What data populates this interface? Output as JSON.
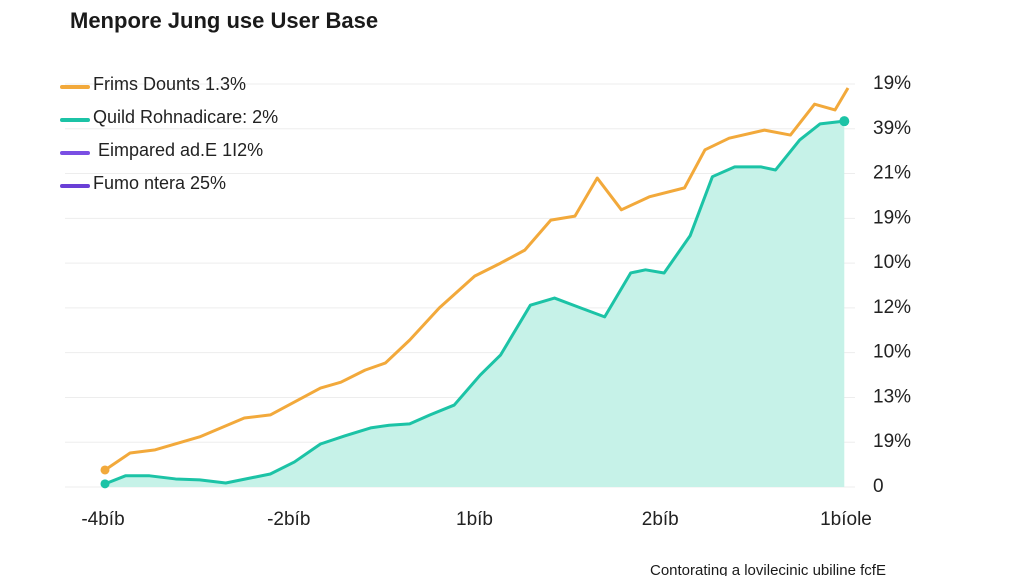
{
  "chart_data": {
    "type": "line",
    "title": "Menpore Jung use User Base",
    "footnote": "Contorating a lovilecinic ubiline fcfE",
    "xlim": [
      0,
      40
    ],
    "xticks": [
      {
        "value": 0,
        "label": "-4bíb"
      },
      {
        "value": 10,
        "label": "-2bíb"
      },
      {
        "value": 20,
        "label": "1bíb"
      },
      {
        "value": 30,
        "label": "2bíb"
      },
      {
        "value": 40,
        "label": "1bíole"
      }
    ],
    "ylim": [
      0,
      9
    ],
    "yticks": [
      0,
      {
        "value": 1,
        "label": "19%"
      },
      {
        "value": 2,
        "label": "13%"
      },
      {
        "value": 3,
        "label": "10%"
      },
      {
        "value": 4,
        "label": "12%"
      },
      {
        "value": 5,
        "label": "10%"
      },
      {
        "value": 6,
        "label": "19%"
      },
      {
        "value": 7,
        "label": "21%"
      },
      {
        "value": 8,
        "label": "39%"
      },
      {
        "value": 9,
        "label": "19%"
      }
    ],
    "grid": true,
    "legend_position": "upper left",
    "series": [
      {
        "name": "Frims Dounts 1.3%",
        "color": "#f2a93b",
        "x": [
          0,
          1.35,
          2.7,
          5.1,
          7.5,
          8.9,
          11.6,
          12.7,
          14,
          15.1,
          16.4,
          18,
          19.9,
          21.3,
          22.6,
          24,
          25.3,
          26.5,
          27.8,
          29.3,
          31.2,
          32.3,
          33.6,
          35.5,
          36.9,
          38.2,
          39.3,
          40
        ],
        "values": [
          0.38,
          0.76,
          0.83,
          1.12,
          1.54,
          1.61,
          2.21,
          2.34,
          2.61,
          2.77,
          3.28,
          4.0,
          4.71,
          5.0,
          5.29,
          5.96,
          6.05,
          6.9,
          6.19,
          6.48,
          6.68,
          7.53,
          7.79,
          7.97,
          7.86,
          8.55,
          8.42,
          8.91
        ]
      },
      {
        "name": "Quild Rohnadicare: 2%",
        "color": "#1cc3a6",
        "fill": "#c6f2e8",
        "x": [
          0,
          1.1,
          2.4,
          3.8,
          5.1,
          6.5,
          8.9,
          10.2,
          11.6,
          12.9,
          14.3,
          15.3,
          16.4,
          17.5,
          18.8,
          20.2,
          21.3,
          22.9,
          24.2,
          25.6,
          26.9,
          28.3,
          29.1,
          30.1,
          31.5,
          32.7,
          33.9,
          35.3,
          36.1,
          37.4,
          38.5,
          39.8
        ],
        "values": [
          0.07,
          0.25,
          0.25,
          0.18,
          0.16,
          0.09,
          0.29,
          0.56,
          0.96,
          1.14,
          1.32,
          1.38,
          1.41,
          1.61,
          1.83,
          2.5,
          2.95,
          4.06,
          4.22,
          4.0,
          3.8,
          4.78,
          4.85,
          4.78,
          5.61,
          6.93,
          7.15,
          7.15,
          7.08,
          7.75,
          8.11,
          8.17
        ]
      },
      {
        "name": "Eimpared ad.E 1I2%",
        "color": "#7a4fe3"
      },
      {
        "name": "Fumo ntera 25%",
        "color": "#6a3fd6"
      }
    ]
  }
}
